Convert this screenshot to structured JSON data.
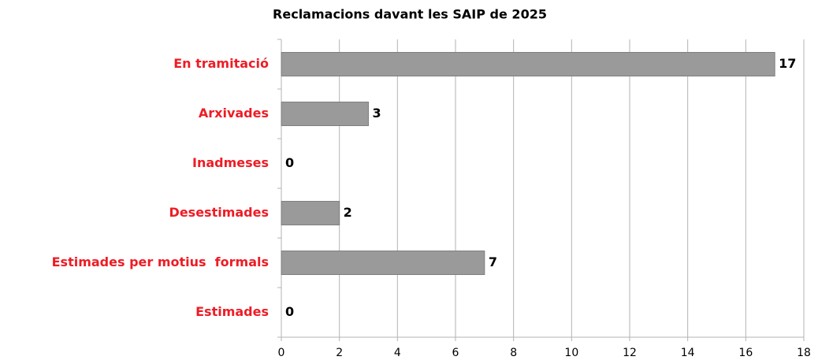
{
  "chart_data": {
    "type": "hbar",
    "title": "Reclamacions davant les SAIP de 2025",
    "categories": [
      "En tramitació",
      "Arxivades",
      "Inadmeses",
      "Desestimades",
      "Estimades per motius  formals",
      "Estimades"
    ],
    "values": [
      17,
      3,
      0,
      2,
      7,
      0
    ],
    "color": "#9a9a9a",
    "label_color": "#ee1c25",
    "xlim": [
      0,
      18
    ],
    "xticks": [
      0,
      2,
      4,
      6,
      8,
      10,
      12,
      14,
      16,
      18
    ],
    "grid": true
  }
}
